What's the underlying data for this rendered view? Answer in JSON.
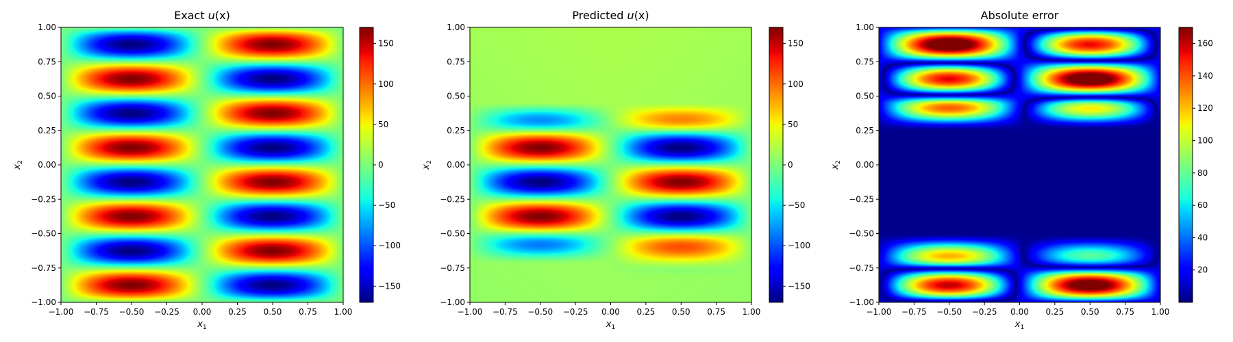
{
  "chart_data": [
    {
      "type": "heatmap",
      "title_prefix": "Exact ",
      "title_math": "u",
      "title_suffix": "(x)",
      "xlabel": "x",
      "xlabel_sub": "1",
      "ylabel": "x",
      "ylabel_sub": "2",
      "xlim": [
        -1,
        1
      ],
      "ylim": [
        -1,
        1
      ],
      "xticks": [
        -1.0,
        -0.75,
        -0.5,
        -0.25,
        0.0,
        0.25,
        0.5,
        0.75,
        1.0
      ],
      "xtick_labels": [
        "−1.00",
        "−0.75",
        "−0.50",
        "−0.25",
        "0.00",
        "0.25",
        "0.50",
        "0.75",
        "1.00"
      ],
      "yticks": [
        -1.0,
        -0.75,
        -0.5,
        -0.25,
        0.0,
        0.25,
        0.5,
        0.75,
        1.0
      ],
      "ytick_labels": [
        "−1.00",
        "−0.75",
        "−0.50",
        "−0.25",
        "0.00",
        "0.25",
        "0.50",
        "0.75",
        "1.00"
      ],
      "colormap": "jet",
      "clim": [
        -170,
        170
      ],
      "colorbar_ticks": [
        150,
        100,
        50,
        0,
        -50,
        -100,
        -150
      ],
      "colorbar_tick_labels": [
        "150",
        "100",
        "50",
        "0",
        "−50",
        "−100",
        "−150"
      ],
      "field": {
        "kind": "exact",
        "amplitude": 170,
        "x_cycles": 1,
        "y_cycles": 4
      }
    },
    {
      "type": "heatmap",
      "title_prefix": "Predicted ",
      "title_math": "u",
      "title_suffix": "(x)",
      "xlabel": "x",
      "xlabel_sub": "1",
      "ylabel": "x",
      "ylabel_sub": "2",
      "xlim": [
        -1,
        1
      ],
      "ylim": [
        -1,
        1
      ],
      "xticks": [
        -1.0,
        -0.75,
        -0.5,
        -0.25,
        0.0,
        0.25,
        0.5,
        0.75,
        1.0
      ],
      "xtick_labels": [
        "−1.00",
        "−0.75",
        "−0.50",
        "−0.25",
        "0.00",
        "0.25",
        "0.50",
        "0.75",
        "1.00"
      ],
      "yticks": [
        -1.0,
        -0.75,
        -0.5,
        -0.25,
        0.0,
        0.25,
        0.5,
        0.75,
        1.0
      ],
      "ytick_labels": [
        "−1.00",
        "−0.75",
        "−0.50",
        "−0.25",
        "0.00",
        "0.25",
        "0.50",
        "0.75",
        "1.00"
      ],
      "colormap": "jet",
      "clim": [
        -170,
        170
      ],
      "colorbar_ticks": [
        150,
        100,
        50,
        0,
        -50,
        -100,
        -150
      ],
      "colorbar_tick_labels": [
        "150",
        "100",
        "50",
        "0",
        "−50",
        "−100",
        "−150"
      ],
      "field": {
        "kind": "predicted",
        "amplitude": 170,
        "background": 20,
        "captured_y_range": [
          -0.75,
          0.5
        ]
      }
    },
    {
      "type": "heatmap",
      "title_prefix": "Absolute error",
      "title_math": "",
      "title_suffix": "",
      "xlabel": "x",
      "xlabel_sub": "1",
      "ylabel": "x",
      "ylabel_sub": "2",
      "xlim": [
        -1,
        1
      ],
      "ylim": [
        -1,
        1
      ],
      "xticks": [
        -1.0,
        -0.75,
        -0.5,
        -0.25,
        0.0,
        0.25,
        0.5,
        0.75,
        1.0
      ],
      "xtick_labels": [
        "−1.00",
        "−0.75",
        "−0.50",
        "−0.25",
        "0.00",
        "0.25",
        "0.50",
        "0.75",
        "1.00"
      ],
      "yticks": [
        -1.0,
        -0.75,
        -0.5,
        -0.25,
        0.0,
        0.25,
        0.5,
        0.75,
        1.0
      ],
      "ytick_labels": [
        "−1.00",
        "−0.75",
        "−0.50",
        "−0.25",
        "0.00",
        "0.25",
        "0.50",
        "0.75",
        "1.00"
      ],
      "colormap": "jet",
      "clim": [
        0,
        170
      ],
      "colorbar_ticks": [
        160,
        140,
        120,
        100,
        80,
        60,
        40,
        20
      ],
      "colorbar_tick_labels": [
        "160",
        "140",
        "120",
        "100",
        "80",
        "60",
        "40",
        "20"
      ],
      "field": {
        "kind": "error"
      }
    }
  ]
}
